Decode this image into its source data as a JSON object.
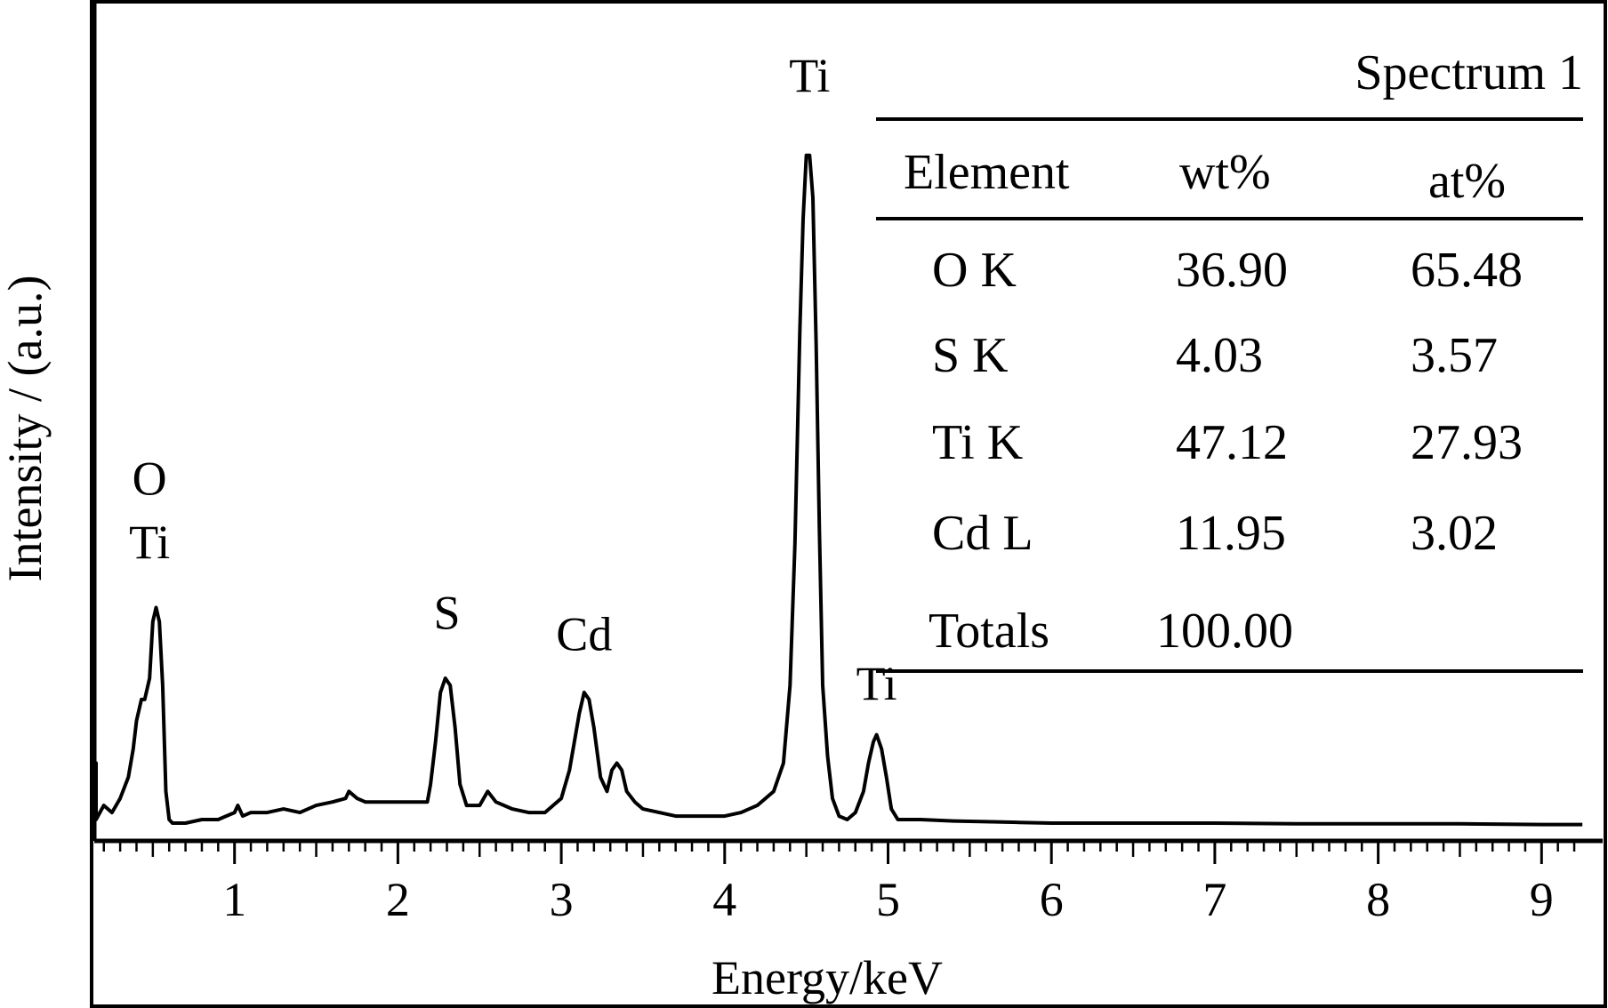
{
  "chart_data": {
    "type": "line",
    "title": "",
    "xlabel": "Energy/keV",
    "ylabel": "Intensity / (a.u.)",
    "xlim": [
      0.05,
      9.25
    ],
    "ylim": [
      0,
      100
    ],
    "x_ticks": [
      "1",
      "2",
      "3",
      "4",
      "5",
      "6",
      "7",
      "8",
      "9"
    ],
    "grid": false,
    "series": [
      {
        "x": [
          0.05,
          0.06,
          0.1,
          0.15,
          0.2,
          0.25,
          0.3,
          0.35,
          0.38,
          0.4,
          0.43,
          0.45,
          0.48,
          0.5,
          0.52,
          0.54,
          0.56,
          0.58,
          0.6,
          0.62,
          0.65,
          0.7,
          0.8,
          0.9,
          1.0,
          1.02,
          1.05,
          1.1,
          1.2,
          1.3,
          1.4,
          1.5,
          1.6,
          1.68,
          1.7,
          1.75,
          1.8,
          1.9,
          2.0,
          2.1,
          2.18,
          2.2,
          2.23,
          2.26,
          2.29,
          2.32,
          2.35,
          2.38,
          2.42,
          2.5,
          2.55,
          2.6,
          2.7,
          2.8,
          2.9,
          2.95,
          3.0,
          3.05,
          3.08,
          3.11,
          3.14,
          3.17,
          3.2,
          3.24,
          3.28,
          3.31,
          3.34,
          3.37,
          3.4,
          3.45,
          3.5,
          3.6,
          3.7,
          3.8,
          3.9,
          4.0,
          4.1,
          4.2,
          4.3,
          4.36,
          4.4,
          4.43,
          4.46,
          4.48,
          4.5,
          4.52,
          4.54,
          4.56,
          4.58,
          4.6,
          4.63,
          4.66,
          4.7,
          4.75,
          4.8,
          4.85,
          4.88,
          4.91,
          4.93,
          4.96,
          4.99,
          5.02,
          5.06,
          5.1,
          5.2,
          5.4,
          5.6,
          5.8,
          6.0,
          6.5,
          7.0,
          7.5,
          8.0,
          8.5,
          9.0,
          9.25
        ],
        "values": [
          5,
          9,
          2,
          1,
          3,
          2,
          4,
          7,
          11,
          15,
          18,
          18,
          21,
          29,
          31,
          29,
          20,
          5,
          1,
          0.5,
          0.5,
          0.5,
          1,
          1,
          2,
          3,
          1.5,
          2,
          2,
          2.5,
          2,
          3,
          3.5,
          4,
          5,
          4,
          3.5,
          3.5,
          3.5,
          3.5,
          3.5,
          6,
          12,
          19,
          21,
          20,
          14,
          6,
          3,
          3,
          5,
          3.5,
          2.5,
          2,
          2,
          3,
          4,
          8,
          12,
          16,
          19,
          18,
          14,
          7,
          5,
          8,
          9,
          8,
          5,
          3.5,
          2.5,
          2,
          1.5,
          1.5,
          1.5,
          1.5,
          2,
          3,
          5,
          9,
          20,
          40,
          70,
          86,
          95,
          95,
          89,
          68,
          42,
          20,
          10,
          4,
          1.5,
          1,
          2,
          5,
          9,
          12,
          13,
          11,
          7,
          2.5,
          1,
          1,
          1,
          0.8,
          0.7,
          0.6,
          0.5,
          0.5,
          0.5,
          0.4,
          0.4,
          0.4,
          0.3,
          0.3
        ]
      }
    ],
    "peak_labels": [
      {
        "text": "O",
        "x": 0.48,
        "y": 47
      },
      {
        "text": "Ti",
        "x": 0.48,
        "y": 38
      },
      {
        "text": "S",
        "x": 2.3,
        "y": 28
      },
      {
        "text": "Cd",
        "x": 3.14,
        "y": 25
      },
      {
        "text": "Ti",
        "x": 4.52,
        "y": 104
      },
      {
        "text": "Ti",
        "x": 4.93,
        "y": 18
      }
    ],
    "inset_table": {
      "title": "Spectrum 1",
      "headers": [
        "Element",
        "wt%",
        "at%"
      ],
      "rows": [
        [
          "O K",
          "36.90",
          "65.48"
        ],
        [
          "S K",
          "4.03",
          "3.57"
        ],
        [
          "Ti K",
          "47.12",
          "27.93"
        ],
        [
          "Cd L",
          "11.95",
          "3.02"
        ],
        [
          "Totals",
          "100.00",
          ""
        ]
      ]
    }
  }
}
